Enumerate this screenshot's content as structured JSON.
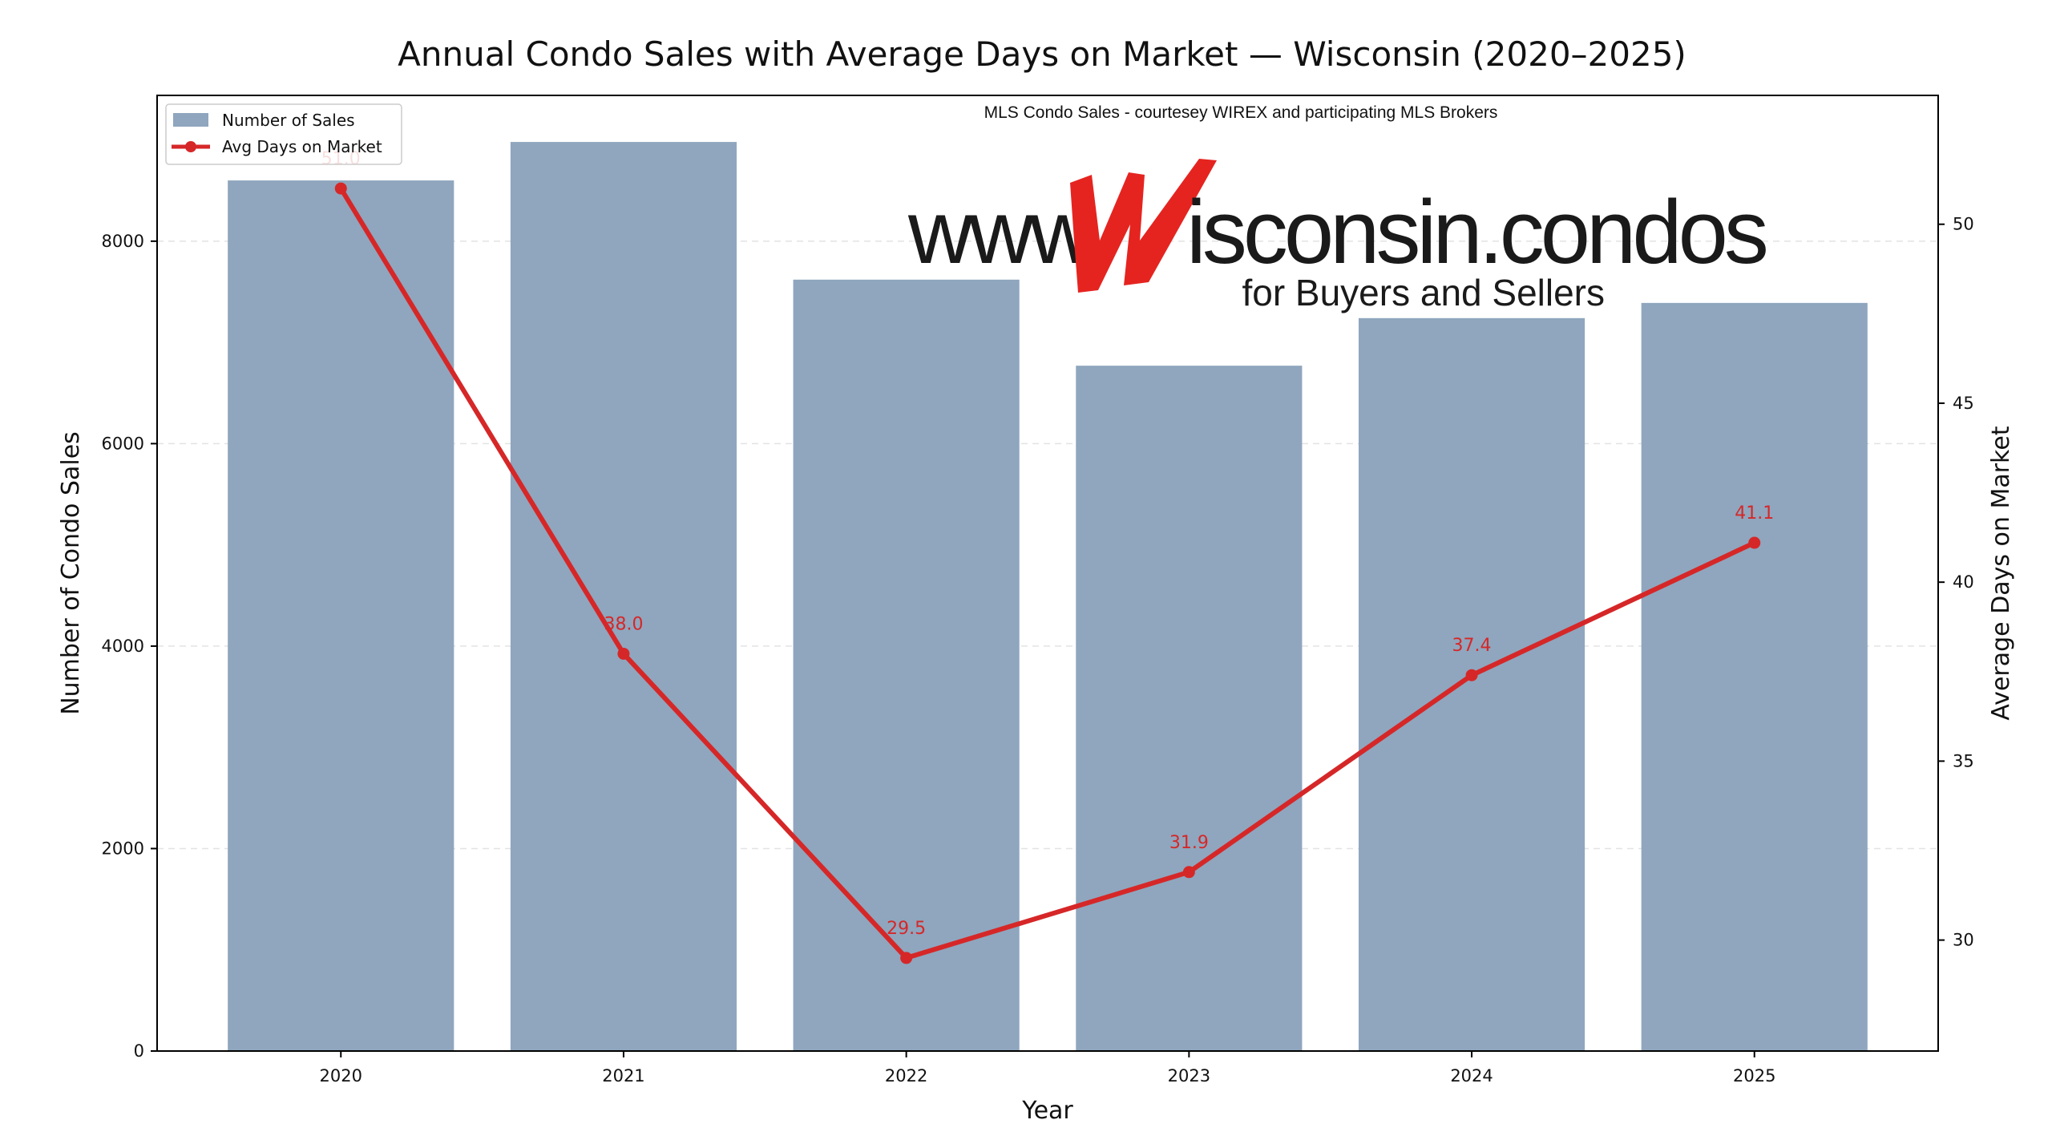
{
  "chart_data": {
    "type": "bar",
    "title": "Annual Condo Sales with Average Days on Market — Wisconsin (2020–2025)",
    "xlabel": "Year",
    "ylabel": "Number of Condo Sales",
    "y2label": "Average Days on Market",
    "categories": [
      "2020",
      "2021",
      "2022",
      "2023",
      "2024",
      "2025"
    ],
    "series": [
      {
        "name": "Number of Sales",
        "type": "bar",
        "axis": "left",
        "color": "#8fa6be",
        "values": [
          8600,
          8980,
          7620,
          6770,
          7240,
          7390
        ]
      },
      {
        "name": "Avg Days on Market",
        "type": "line",
        "axis": "right",
        "color": "#d62728",
        "values": [
          51.0,
          38.0,
          29.5,
          31.9,
          37.4,
          41.1
        ],
        "labels": [
          "51.0",
          "38.0",
          "29.5",
          "31.9",
          "37.4",
          "41.1"
        ]
      }
    ],
    "ylim": [
      0,
      9440
    ],
    "y2lim": [
      26.9,
      53.6
    ],
    "yticks": [
      "0",
      "2000",
      "4000",
      "6000",
      "8000"
    ],
    "yticks_values": [
      0,
      2000,
      4000,
      6000,
      8000
    ],
    "y2ticks": [
      "30",
      "35",
      "40",
      "45",
      "50"
    ],
    "y2ticks_values": [
      30,
      35,
      40,
      45,
      50
    ],
    "grid": "horizontal dashed",
    "legend": "top-left"
  },
  "watermark": {
    "credit": "MLS Condo Sales - courtesey WIREX and participating MLS Brokers",
    "site_prefix": "www.",
    "site_letter": "W",
    "site_suffix": "isconsin.condos",
    "tagline": "for Buyers and Sellers"
  }
}
